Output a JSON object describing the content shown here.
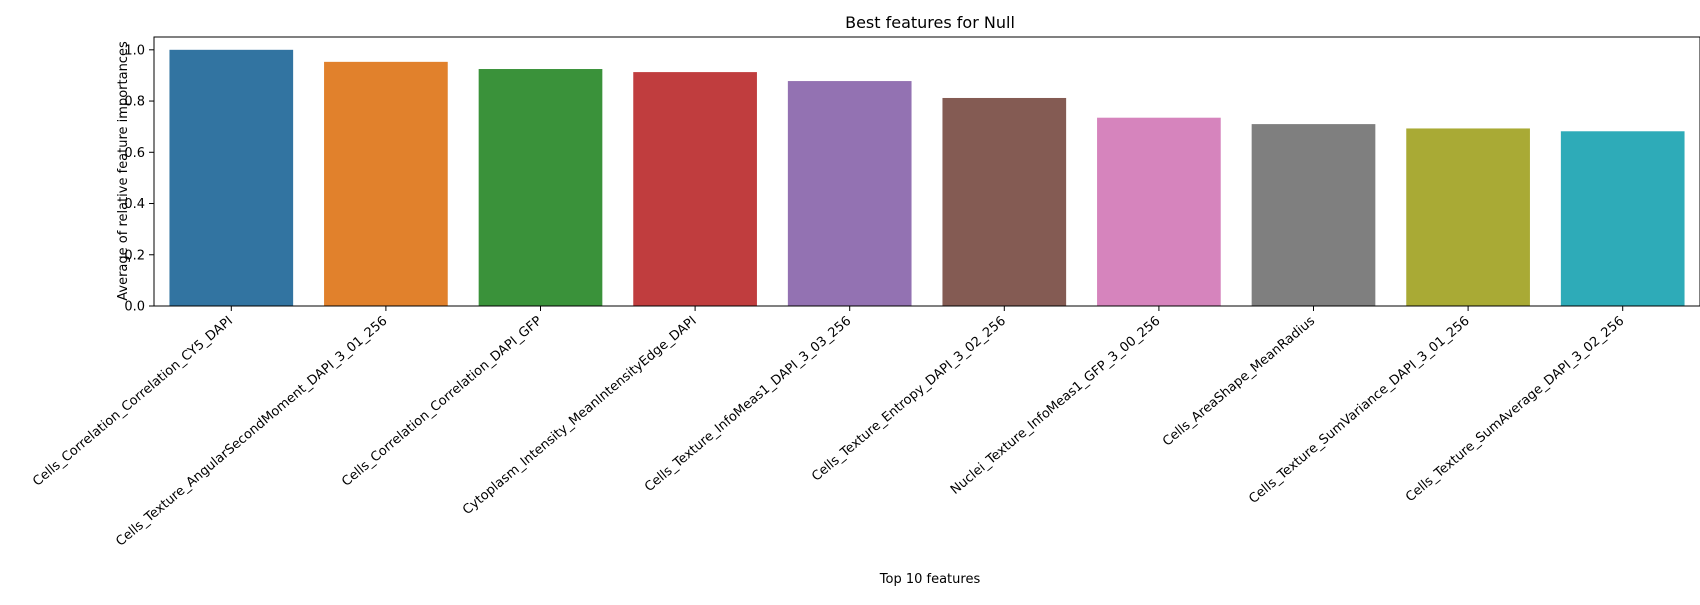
{
  "chart_data": {
    "type": "bar",
    "title": "Best features for Null",
    "xlabel": "Top 10 features",
    "ylabel": "Average of relative feature importances",
    "ylim": [
      0,
      1.05
    ],
    "yticks": [
      "0.0",
      "0.2",
      "0.4",
      "0.6",
      "0.8",
      "1.0"
    ],
    "grid": false,
    "categories": [
      "Cells_Correlation_Correlation_CY5_DAPI",
      "Cells_Texture_AngularSecondMoment_DAPI_3_01_256",
      "Cells_Correlation_Correlation_DAPI_GFP",
      "Cytoplasm_Intensity_MeanIntensityEdge_DAPI",
      "Cells_Texture_InfoMeas1_DAPI_3_03_256",
      "Cells_Texture_Entropy_DAPI_3_02_256",
      "Nuclei_Texture_InfoMeas1_GFP_3_00_256",
      "Cells_AreaShape_MeanRadius",
      "Cells_Texture_SumVariance_DAPI_3_01_256",
      "Cells_Texture_SumAverage_DAPI_3_02_256"
    ],
    "values": [
      1.0,
      0.953,
      0.925,
      0.913,
      0.878,
      0.812,
      0.735,
      0.71,
      0.693,
      0.682
    ],
    "colors": [
      "#3274a1",
      "#e1812c",
      "#3a923a",
      "#c03d3e",
      "#9372b2",
      "#845b53",
      "#d684bd",
      "#7f7f7f",
      "#a9aa35",
      "#2eabb8"
    ]
  }
}
